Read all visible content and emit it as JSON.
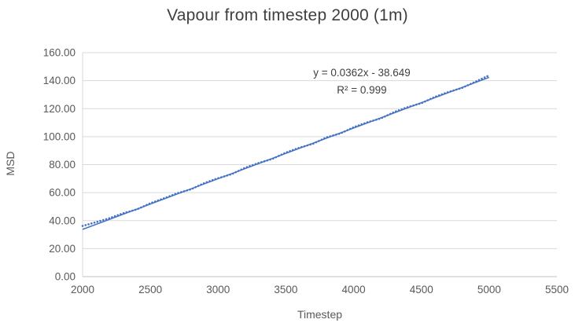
{
  "chart_data": {
    "type": "scatter",
    "title": "Vapour from timestep 2000 (1m)",
    "xlabel": "Timestep",
    "ylabel": "MSD",
    "xlim": [
      2000,
      5500
    ],
    "ylim": [
      0,
      160
    ],
    "x_ticks": [
      2000,
      2500,
      3000,
      3500,
      4000,
      4500,
      5000,
      5500
    ],
    "x_tick_labels": [
      "2000",
      "2500",
      "3000",
      "3500",
      "4000",
      "4500",
      "5000",
      "5500"
    ],
    "y_ticks": [
      0,
      20,
      40,
      60,
      80,
      100,
      120,
      140,
      160
    ],
    "y_tick_labels": [
      "0.00",
      "20.00",
      "40.00",
      "60.00",
      "80.00",
      "100.00",
      "120.00",
      "140.00",
      "160.00"
    ],
    "grid": "horizontal",
    "legend": "none",
    "series": [
      {
        "name": "MSD",
        "style": "dotted",
        "color": "#4472C4",
        "x": [
          2000,
          2100,
          2200,
          2300,
          2400,
          2500,
          2600,
          2700,
          2800,
          2900,
          3000,
          3100,
          3200,
          3300,
          3400,
          3500,
          3600,
          3700,
          3800,
          3900,
          4000,
          4100,
          4200,
          4300,
          4400,
          4500,
          4600,
          4700,
          4800,
          4900,
          5000
        ],
        "y": [
          36.2,
          38.9,
          41.8,
          45.3,
          48.0,
          52.4,
          55.9,
          59.6,
          62.4,
          66.9,
          70.3,
          73.2,
          77.8,
          81.2,
          84.1,
          88.6,
          92.1,
          94.9,
          99.5,
          102.2,
          106.7,
          110.2,
          113.0,
          117.6,
          121.1,
          123.9,
          128.4,
          131.9,
          134.8,
          139.3,
          143.8
        ]
      }
    ],
    "trendline": {
      "slope": 0.0362,
      "intercept": -38.649,
      "r_squared": 0.999,
      "x_range": [
        2000,
        5000
      ],
      "color": "#4472C4",
      "label_lines": [
        "y = 0.0362x - 38.649",
        "R² = 0.999"
      ]
    },
    "colors": {
      "series": "#4472C4",
      "grid": "#D9D9D9",
      "axis": "#BFBFBF",
      "text": "#595959"
    }
  }
}
